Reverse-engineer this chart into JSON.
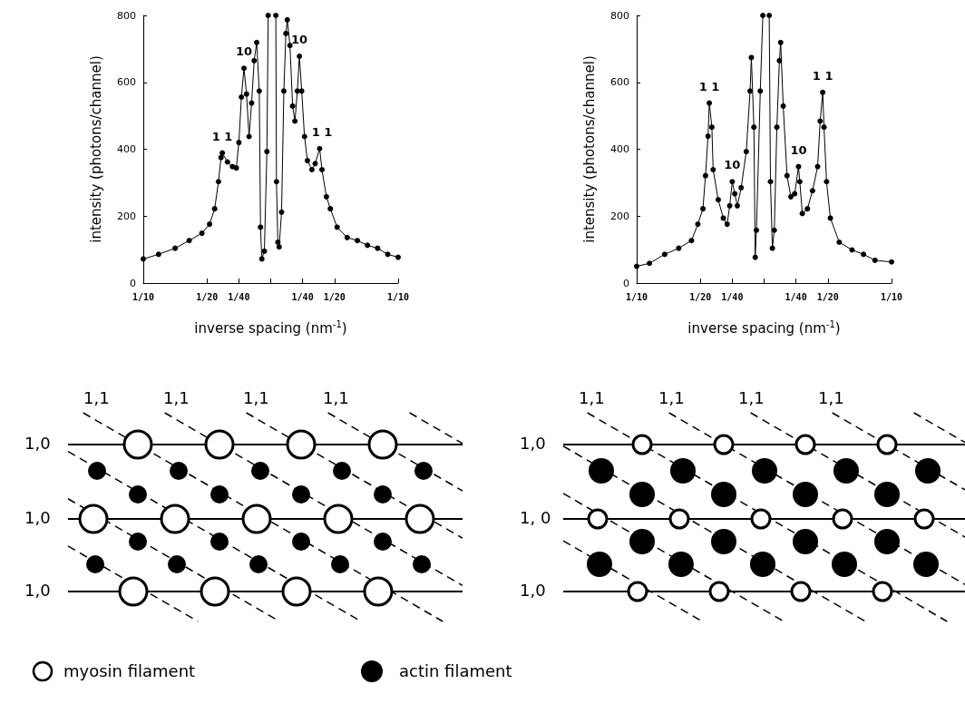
{
  "chart_data": [
    {
      "type": "line",
      "xlabel": "inverse spacing (nm$^{-1}$)",
      "ylabel": "intensity (photons/channel)",
      "color": "#000000",
      "marker": "circle",
      "x": [
        -0.1,
        -0.088,
        -0.075,
        -0.064,
        -0.054,
        -0.048,
        -0.044,
        -0.041,
        -0.039,
        -0.038,
        -0.034,
        -0.03,
        -0.027,
        -0.025,
        -0.023,
        -0.021,
        -0.019,
        -0.017,
        -0.015,
        -0.013,
        -0.011,
        -0.009,
        -0.008,
        -0.007,
        -0.005,
        -0.003,
        -0.002,
        0.001,
        0.004,
        0.0045,
        0.0056,
        0.0066,
        0.0085,
        0.0103,
        0.0119,
        0.013,
        0.0151,
        0.0172,
        0.019,
        0.0209,
        0.0225,
        0.0243,
        0.0265,
        0.0288,
        0.0323,
        0.0349,
        0.0384,
        0.0402,
        0.0437,
        0.0468,
        0.0521,
        0.06,
        0.068,
        0.0759,
        0.0839,
        0.0918,
        0.1
      ],
      "values": [
        72,
        86,
        104,
        127,
        149,
        176,
        222,
        303,
        375,
        389,
        362,
        348,
        344,
        420,
        556,
        642,
        565,
        438,
        538,
        665,
        719,
        574,
        167,
        72,
        95,
        393,
        800,
        null,
        800,
        303,
        122,
        108,
        212,
        574,
        746,
        787,
        710,
        529,
        484,
        574,
        678,
        574,
        438,
        366,
        339,
        357,
        402,
        339,
        258,
        222,
        167,
        136,
        127,
        113,
        104,
        86,
        77
      ],
      "xlim": [
        -0.1,
        0.1
      ],
      "xticks": [
        {
          "value": -0.1,
          "label": "1/10"
        },
        {
          "value": -0.05,
          "label": "1/20"
        },
        {
          "value": -0.025,
          "label": "1/40"
        },
        {
          "value": 0,
          "label": null
        },
        {
          "value": 0.025,
          "label": "1/40"
        },
        {
          "value": 0.05,
          "label": "1/20"
        },
        {
          "value": 0.1,
          "label": "1/10"
        }
      ],
      "ylim": [
        0,
        800
      ],
      "yticks": [
        0,
        200,
        400,
        600,
        800
      ],
      "annotations": [
        {
          "text": "1 1",
          "x": -0.038,
          "y": 389
        },
        {
          "text": "10",
          "x": -0.021,
          "y": 642
        },
        {
          "text": "10",
          "x": 0.0225,
          "y": 678
        },
        {
          "text": "1 1",
          "x": 0.0402,
          "y": 402
        }
      ]
    },
    {
      "type": "line",
      "xlabel": "inverse spacing (nm$^{-1}$)",
      "ylabel": "intensity (photons/channel)",
      "color": "#000000",
      "marker": "circle",
      "x": [
        -0.1,
        -0.09,
        -0.078,
        -0.067,
        -0.057,
        -0.052,
        -0.048,
        -0.046,
        -0.044,
        -0.043,
        -0.041,
        -0.04,
        -0.036,
        -0.032,
        -0.029,
        -0.027,
        -0.025,
        -0.023,
        -0.021,
        -0.018,
        -0.014,
        -0.011,
        -0.01,
        -0.008,
        -0.007,
        -0.006,
        -0.003,
        -0.001,
        0.0015,
        0.004,
        0.005,
        0.0065,
        0.008,
        0.01,
        0.012,
        0.013,
        0.015,
        0.018,
        0.021,
        0.024,
        0.027,
        0.028,
        0.03,
        0.034,
        0.038,
        0.042,
        0.044,
        0.046,
        0.047,
        0.049,
        0.052,
        0.059,
        0.069,
        0.078,
        0.087,
        0.1
      ],
      "values": [
        50,
        59,
        86,
        104,
        127,
        176,
        222,
        321,
        439,
        538,
        466,
        339,
        249,
        194,
        176,
        231,
        303,
        267,
        231,
        285,
        393,
        574,
        674,
        466,
        77,
        158,
        574,
        800,
        null,
        800,
        303,
        104,
        158,
        466,
        665,
        719,
        529,
        321,
        258,
        267,
        348,
        303,
        208,
        222,
        276,
        348,
        484,
        570,
        466,
        303,
        194,
        122,
        99,
        86,
        68,
        63
      ],
      "xlim": [
        -0.1,
        0.1
      ],
      "xticks": [
        {
          "value": -0.1,
          "label": "1/10"
        },
        {
          "value": -0.05,
          "label": "1/20"
        },
        {
          "value": -0.025,
          "label": "1/40"
        },
        {
          "value": 0,
          "label": null
        },
        {
          "value": 0.025,
          "label": "1/40"
        },
        {
          "value": 0.05,
          "label": "1/20"
        },
        {
          "value": 0.1,
          "label": "1/10"
        }
      ],
      "ylim": [
        0,
        800
      ],
      "yticks": [
        0,
        200,
        400,
        600,
        800
      ],
      "annotations": [
        {
          "text": "1 1",
          "x": -0.043,
          "y": 538
        },
        {
          "text": "10",
          "x": -0.025,
          "y": 303
        },
        {
          "text": "10",
          "x": 0.027,
          "y": 348
        },
        {
          "text": "1 1",
          "x": 0.046,
          "y": 570
        }
      ]
    },
    {
      "type": "other",
      "annotations": [
        "1,1",
        "1,1",
        "1,1",
        "1,1",
        "1,0",
        "1,0",
        "1,0",
        "1,1",
        "1,1",
        "1,1",
        "1,1",
        "1,0",
        "1, 0",
        "1,0",
        "myosin filament",
        "actin filament"
      ]
    }
  ]
}
